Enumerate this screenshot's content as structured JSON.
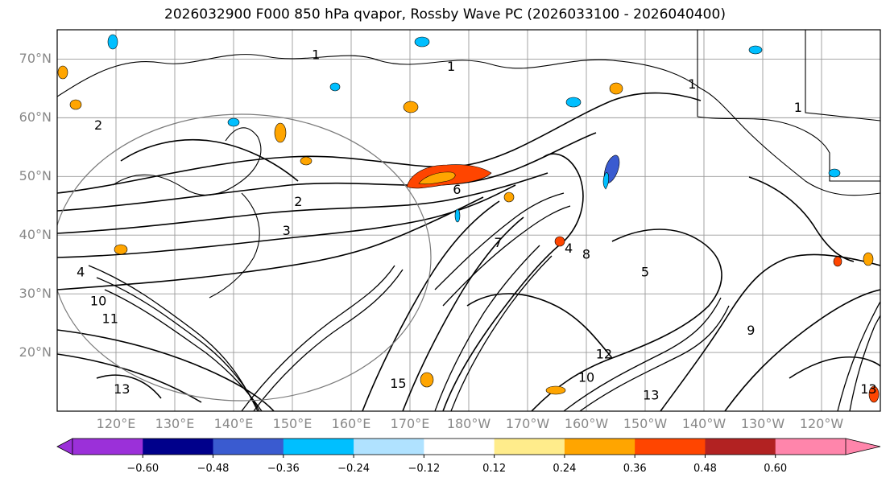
{
  "title": "2026032900 F000 850 hPa qvapor, Rossby Wave PC (2026033100 - 2026040400)",
  "map": {
    "lat_ticks": [
      "70°N",
      "60°N",
      "50°N",
      "40°N",
      "30°N",
      "20°N"
    ],
    "lat_values": [
      70,
      60,
      50,
      40,
      30,
      20
    ],
    "lat_range": [
      10,
      75
    ],
    "lon_ticks": [
      "120°E",
      "130°E",
      "140°E",
      "150°E",
      "160°E",
      "170°E",
      "180°W",
      "170°W",
      "160°W",
      "150°W",
      "140°W",
      "130°W",
      "120°W"
    ],
    "lon_values": [
      120,
      130,
      140,
      150,
      160,
      170,
      180,
      190,
      200,
      210,
      220,
      230,
      240
    ],
    "lon_range": [
      110,
      250
    ],
    "contour_labels": [
      {
        "text": "1",
        "lon": 154,
        "lat": 70
      },
      {
        "text": "1",
        "lon": 177,
        "lat": 68
      },
      {
        "text": "1",
        "lon": 218,
        "lat": 65
      },
      {
        "text": "1",
        "lon": 236,
        "lat": 61
      },
      {
        "text": "2",
        "lon": 117,
        "lat": 58
      },
      {
        "text": "2",
        "lon": 151,
        "lat": 45
      },
      {
        "text": "3",
        "lon": 149,
        "lat": 40
      },
      {
        "text": "4",
        "lon": 114,
        "lat": 33
      },
      {
        "text": "4",
        "lon": 197,
        "lat": 37
      },
      {
        "text": "5",
        "lon": 210,
        "lat": 33
      },
      {
        "text": "6",
        "lon": 178,
        "lat": 47
      },
      {
        "text": "7",
        "lon": 185,
        "lat": 38
      },
      {
        "text": "8",
        "lon": 200,
        "lat": 36
      },
      {
        "text": "9",
        "lon": 228,
        "lat": 23
      },
      {
        "text": "10",
        "lon": 117,
        "lat": 28
      },
      {
        "text": "11",
        "lon": 119,
        "lat": 25
      },
      {
        "text": "12",
        "lon": 203,
        "lat": 19
      },
      {
        "text": "13",
        "lon": 121,
        "lat": 13
      },
      {
        "text": "13",
        "lon": 211,
        "lat": 12
      },
      {
        "text": "13",
        "lon": 248,
        "lat": 13
      },
      {
        "text": "10",
        "lon": 200,
        "lat": 15
      },
      {
        "text": "15",
        "lon": 168,
        "lat": 14
      }
    ],
    "colors": {
      "frame": "#000000",
      "grid": "#9a9a9a",
      "tick_label": "#888888",
      "circle": "#7a7a7a"
    }
  },
  "colorbar": {
    "tick_labels": [
      "−0.60",
      "−0.48",
      "−0.36",
      "−0.24",
      "−0.12",
      "0.12",
      "0.24",
      "0.36",
      "0.48",
      "0.60"
    ],
    "tick_values": [
      -0.6,
      -0.48,
      -0.36,
      -0.24,
      -0.12,
      0.12,
      0.24,
      0.36,
      0.48,
      0.6
    ],
    "under_color": "#9b30d9",
    "over_color": "#ff85ab",
    "bin_colors": [
      "#9b30d9",
      "#00008b",
      "#3a5bd0",
      "#00bfff",
      "#b0e2ff",
      "#ffffff",
      "#ffec8b",
      "#ffa500",
      "#ff4500",
      "#b22222",
      "#ff85ab"
    ]
  }
}
